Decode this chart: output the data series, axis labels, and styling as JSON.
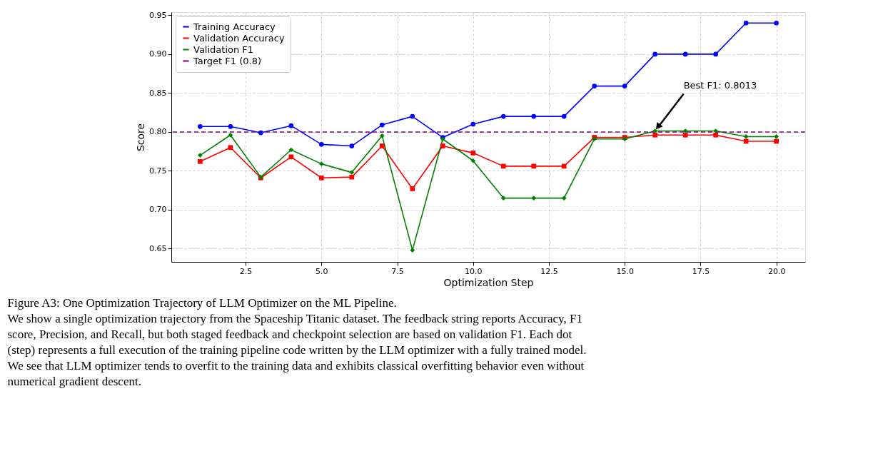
{
  "chart_data": {
    "type": "line",
    "xlabel": "Optimization Step",
    "ylabel": "Score",
    "x": [
      1,
      2,
      3,
      4,
      5,
      6,
      7,
      8,
      9,
      10,
      11,
      12,
      13,
      14,
      15,
      16,
      17,
      18,
      19,
      20
    ],
    "series": [
      {
        "name": "Training Accuracy",
        "color": "#0000ff",
        "marker": "circle",
        "values": [
          0.807,
          0.807,
          0.799,
          0.808,
          0.784,
          0.782,
          0.809,
          0.82,
          0.793,
          0.81,
          0.82,
          0.82,
          0.82,
          0.859,
          0.859,
          0.9,
          0.9,
          0.9,
          0.94,
          0.94
        ]
      },
      {
        "name": "Validation Accuracy",
        "color": "#ff0000",
        "marker": "square",
        "values": [
          0.762,
          0.78,
          0.741,
          0.768,
          0.741,
          0.742,
          0.782,
          0.727,
          0.782,
          0.773,
          0.756,
          0.756,
          0.756,
          0.793,
          0.793,
          0.796,
          0.796,
          0.796,
          0.788,
          0.788
        ]
      },
      {
        "name": "Validation F1",
        "color": "#008000",
        "marker": "diamond",
        "values": [
          0.77,
          0.796,
          0.742,
          0.777,
          0.759,
          0.748,
          0.795,
          0.648,
          0.791,
          0.763,
          0.715,
          0.715,
          0.715,
          0.791,
          0.791,
          0.8013,
          0.8013,
          0.8013,
          0.794,
          0.794
        ]
      }
    ],
    "ref_lines": [
      {
        "axis": "y",
        "value": 0.8,
        "label": "Target F1 (0.8)",
        "color": "#800080",
        "line_style": "dashed"
      }
    ],
    "xlim": [
      0.05,
      20.95
    ],
    "ylim": [
      0.633,
      0.954
    ],
    "xticks": [
      {
        "value": 2.5,
        "label": "2.5"
      },
      {
        "value": 5,
        "label": "5.0"
      },
      {
        "value": 7.5,
        "label": "7.5"
      },
      {
        "value": 10,
        "label": "10.0"
      },
      {
        "value": 12.5,
        "label": "12.5"
      },
      {
        "value": 15,
        "label": "15.0"
      },
      {
        "value": 17.5,
        "label": "17.5"
      },
      {
        "value": 20,
        "label": "20.0"
      }
    ],
    "yticks": [
      0.65,
      {
        "value": 0.7,
        "label": "0.70"
      },
      0.75,
      {
        "value": 0.8,
        "label": "0.80"
      },
      0.85,
      {
        "value": 0.9,
        "label": "0.90"
      },
      0.95
    ],
    "grid": true,
    "legend": "top left",
    "line_style": "solid",
    "annotations": [
      {
        "text": "Best F1: 0.8013",
        "x": 16,
        "y": 0.8013
      },
      "Figure A3: One Optimization Trajectory of LLM Optimizer on the ML Pipeline.",
      "We show a single optimization trajectory from the Spaceship Titanic dataset. The feedback string reports Accuracy, F1 score, Precision, and Recall, but both staged feedback and checkpoint selection are based on validation F1. Each dot (step) represents a full execution of the training pipeline code written by the LLM optimizer with a fully trained model. We see that LLM optimizer tends to overfit to the training data and exhibits classical overfitting behavior even without numerical gradient descent."
    ]
  }
}
